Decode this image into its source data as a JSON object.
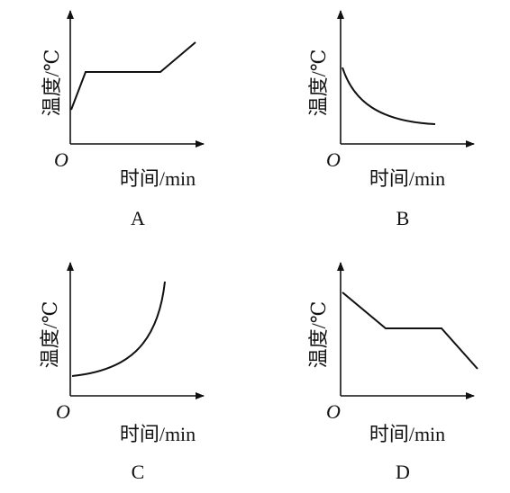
{
  "panels": [
    {
      "label": "A",
      "y_axis": "温度/℃",
      "x_axis": "时间/min",
      "origin": "O"
    },
    {
      "label": "B",
      "y_axis": "温度/℃",
      "x_axis": "时间/min",
      "origin": "O"
    },
    {
      "label": "C",
      "y_axis": "温度/℃",
      "x_axis": "时间/min",
      "origin": "O"
    },
    {
      "label": "D",
      "y_axis": "温度/℃",
      "x_axis": "时间/min",
      "origin": "O"
    }
  ]
}
